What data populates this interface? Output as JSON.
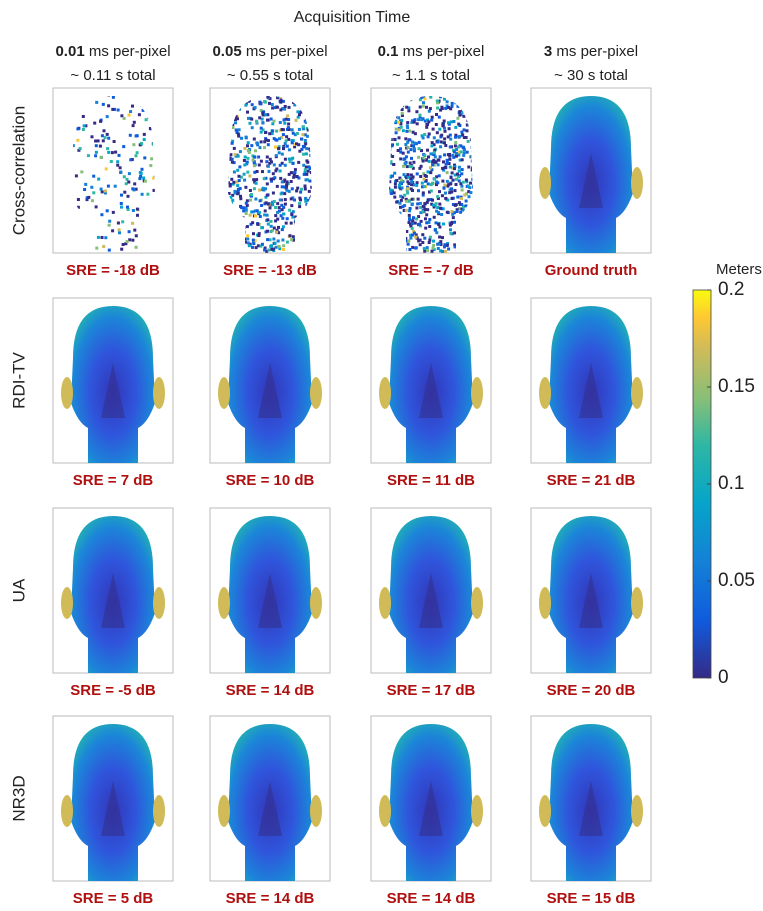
{
  "title": "Acquisition Time",
  "columns": [
    {
      "bold": "0.01",
      "unit": " ms per-pixel",
      "total": "~ 0.11 s total"
    },
    {
      "bold": "0.05",
      "unit": " ms per-pixel",
      "total": "~ 0.55 s total"
    },
    {
      "bold": "0.1",
      "unit": " ms per-pixel",
      "total": "~ 1.1 s total"
    },
    {
      "bold": "3",
      "unit": " ms per-pixel",
      "total": "~ 30 s total"
    }
  ],
  "rows": [
    {
      "label": "Cross-correlation",
      "captions": [
        "SRE = -18 dB",
        "SRE = -13 dB",
        "SRE = -7 dB",
        "Ground truth"
      ]
    },
    {
      "label": "RDI-TV",
      "captions": [
        "SRE = 7 dB",
        "SRE = 10 dB",
        "SRE = 11 dB",
        "SRE = 21 dB"
      ]
    },
    {
      "label": "UA",
      "captions": [
        "SRE = -5 dB",
        "SRE = 14 dB",
        "SRE = 17 dB",
        "SRE = 20 dB"
      ]
    },
    {
      "label": "NR3D",
      "captions": [
        "SRE = 5 dB",
        "SRE = 14 dB",
        "SRE = 14 dB",
        "SRE = 15 dB"
      ]
    }
  ],
  "colorbar": {
    "title": "Meters",
    "ylim": [
      0,
      0.2
    ],
    "yticks": [
      0,
      0.05,
      0.1,
      0.15,
      0.2
    ]
  }
}
